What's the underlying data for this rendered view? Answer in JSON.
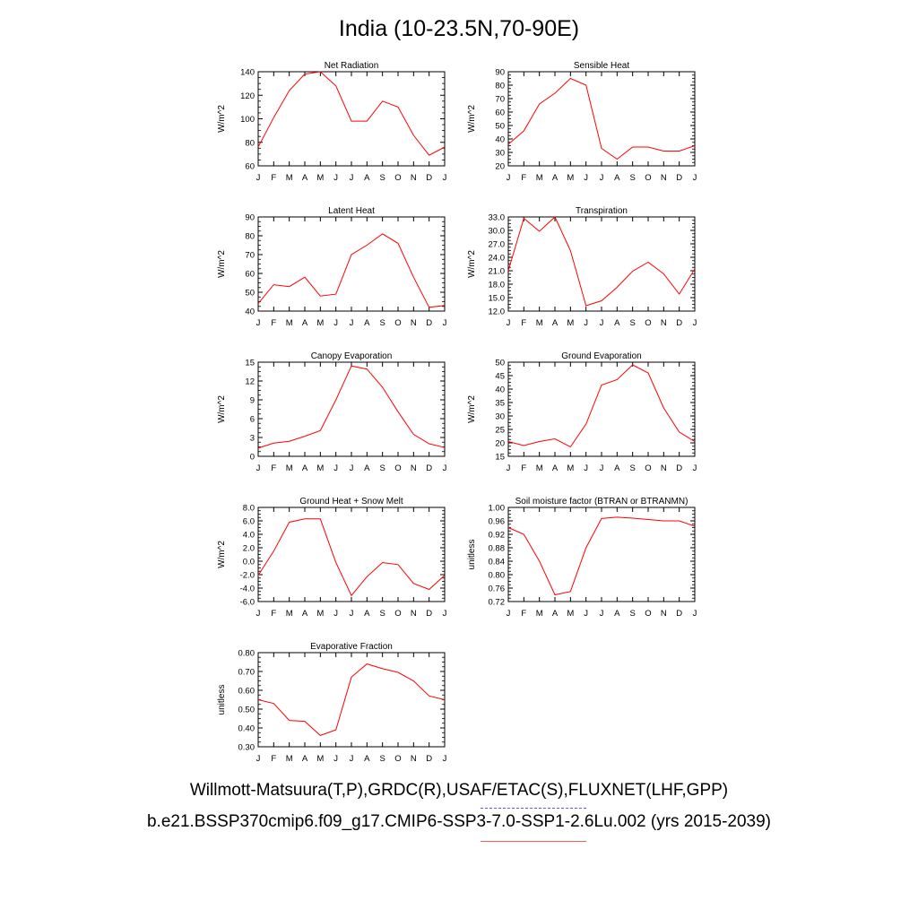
{
  "title": "India (10-23.5N,70-90E)",
  "caption_line1": "Willmott-Matsuura(T,P),GRDC(R),USAF/ETAC(S),FLUXNET(LHF,GPP)",
  "caption_line2": "b.e21.BSSP370cmip6.f09_g17.CMIP6-SSP3-7.0-SSP1-2.6Lu.002 (yrs 2015-2039)",
  "colors": {
    "line": "#ff0000",
    "caption_dash": "#5b5bdc",
    "caption_line": "#ff5a5a"
  },
  "chart_data": [
    {
      "type": "line",
      "title": "Net Radiation",
      "ylabel": "W/m^2",
      "x": [
        "J",
        "F",
        "M",
        "A",
        "M",
        "J",
        "J",
        "A",
        "S",
        "O",
        "N",
        "D",
        "J"
      ],
      "ylim": [
        60,
        140
      ],
      "yticks": [
        "60",
        "80",
        "100",
        "120",
        "140"
      ],
      "series": [
        {
          "values": [
            76,
            101,
            124,
            138,
            140,
            128,
            98,
            98,
            115,
            110,
            86,
            69,
            76
          ]
        }
      ]
    },
    {
      "type": "line",
      "title": "Sensible Heat",
      "ylabel": "W/m^2",
      "x": [
        "J",
        "F",
        "M",
        "A",
        "M",
        "J",
        "J",
        "A",
        "S",
        "O",
        "N",
        "D",
        "J"
      ],
      "ylim": [
        20,
        90
      ],
      "yticks": [
        "20",
        "30",
        "40",
        "50",
        "60",
        "70",
        "80",
        "90"
      ],
      "series": [
        {
          "values": [
            36,
            46,
            66,
            74,
            85,
            80,
            33,
            25,
            34,
            34,
            31,
            31,
            35
          ]
        }
      ]
    },
    {
      "type": "line",
      "title": "Latent Heat",
      "ylabel": "W/m^2",
      "x": [
        "J",
        "F",
        "M",
        "A",
        "M",
        "J",
        "J",
        "A",
        "S",
        "O",
        "N",
        "D",
        "J"
      ],
      "ylim": [
        40,
        90
      ],
      "yticks": [
        "40",
        "50",
        "60",
        "70",
        "80",
        "90"
      ],
      "series": [
        {
          "values": [
            44,
            54,
            53,
            58,
            48,
            49,
            70,
            75,
            81,
            76,
            58,
            42,
            43
          ]
        }
      ]
    },
    {
      "type": "line",
      "title": "Transpiration",
      "ylabel": "W/m^2",
      "x": [
        "J",
        "F",
        "M",
        "A",
        "M",
        "J",
        "J",
        "A",
        "S",
        "O",
        "N",
        "D",
        "J"
      ],
      "ylim": [
        12,
        33
      ],
      "yticks": [
        "12.0",
        "15.0",
        "18.0",
        "21.0",
        "24.0",
        "27.0",
        "30.0",
        "33.0"
      ],
      "series": [
        {
          "values": [
            21.0,
            32.7,
            29.8,
            33.0,
            25.5,
            13.2,
            14.3,
            17.3,
            20.9,
            22.9,
            20.3,
            15.8,
            21.4
          ]
        }
      ]
    },
    {
      "type": "line",
      "title": "Canopy Evaporation",
      "ylabel": "W/m^2",
      "x": [
        "J",
        "F",
        "M",
        "A",
        "M",
        "J",
        "J",
        "A",
        "S",
        "O",
        "N",
        "D",
        "J"
      ],
      "ylim": [
        0,
        15
      ],
      "yticks": [
        "0",
        "3",
        "6",
        "9",
        "12",
        "15"
      ],
      "series": [
        {
          "values": [
            1.3,
            2.1,
            2.4,
            3.2,
            4.1,
            9.0,
            14.4,
            13.9,
            11.0,
            7.1,
            3.5,
            2.0,
            1.4
          ]
        }
      ]
    },
    {
      "type": "line",
      "title": "Ground Evaporation",
      "ylabel": "W/m^2",
      "x": [
        "J",
        "F",
        "M",
        "A",
        "M",
        "J",
        "J",
        "A",
        "S",
        "O",
        "N",
        "D",
        "J"
      ],
      "ylim": [
        15,
        50
      ],
      "yticks": [
        "15",
        "20",
        "25",
        "30",
        "35",
        "40",
        "45",
        "50"
      ],
      "series": [
        {
          "values": [
            20.5,
            19.0,
            20.5,
            21.5,
            18.5,
            27.0,
            41.5,
            43.5,
            49.0,
            46.0,
            33.0,
            24.0,
            20.5
          ]
        }
      ]
    },
    {
      "type": "line",
      "title": "Ground Heat + Snow Melt",
      "ylabel": "W/m^2",
      "x": [
        "J",
        "F",
        "M",
        "A",
        "M",
        "J",
        "J",
        "A",
        "S",
        "O",
        "N",
        "D",
        "J"
      ],
      "ylim": [
        -6,
        8
      ],
      "yticks": [
        "-6.0",
        "-4.0",
        "-2.0",
        "0.0",
        "2.0",
        "4.0",
        "6.0",
        "8.0"
      ],
      "series": [
        {
          "values": [
            -2.1,
            1.5,
            5.8,
            6.3,
            6.3,
            -0.2,
            -5.1,
            -2.3,
            -0.2,
            -0.5,
            -3.3,
            -4.2,
            -2.1
          ]
        }
      ]
    },
    {
      "type": "line",
      "title": "Soil moisture factor (BTRAN or BTRANMN)",
      "ylabel": "unitless",
      "x": [
        "J",
        "F",
        "M",
        "A",
        "M",
        "J",
        "J",
        "A",
        "S",
        "O",
        "N",
        "D",
        "J"
      ],
      "ylim": [
        0.72,
        1.0
      ],
      "yticks": [
        "0.72",
        "0.76",
        "0.80",
        "0.84",
        "0.88",
        "0.92",
        "0.96",
        "1.00"
      ],
      "series": [
        {
          "values": [
            0.94,
            0.92,
            0.84,
            0.74,
            0.75,
            0.88,
            0.967,
            0.971,
            0.968,
            0.964,
            0.96,
            0.96,
            0.944
          ]
        }
      ]
    },
    {
      "type": "line",
      "title": "Evaporative Fraction",
      "ylabel": "unitless",
      "x": [
        "J",
        "F",
        "M",
        "A",
        "M",
        "J",
        "J",
        "A",
        "S",
        "O",
        "N",
        "D",
        "J"
      ],
      "ylim": [
        0.3,
        0.8
      ],
      "yticks": [
        "0.30",
        "0.40",
        "0.50",
        "0.60",
        "0.70",
        "0.80"
      ],
      "series": [
        {
          "values": [
            0.55,
            0.53,
            0.44,
            0.435,
            0.36,
            0.39,
            0.67,
            0.74,
            0.715,
            0.695,
            0.65,
            0.57,
            0.55
          ]
        }
      ]
    }
  ]
}
